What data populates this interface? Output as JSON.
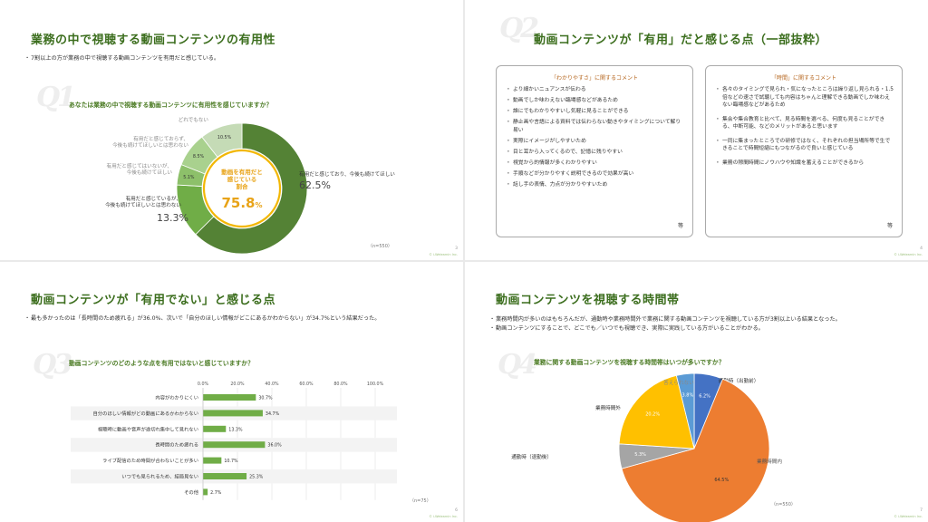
{
  "slide1": {
    "title": "業務の中で視聴する動画コンテンツの有用性",
    "bullet": "7割以上の方が業務の中で視聴する動画コンテンツを有用だと感じている。",
    "q_label": "Q1",
    "question": "あなたは業務の中で視聴する動画コンテンツに有用性を感じていますか？",
    "center_label_1": "動画を有用だと",
    "center_label_2": "感じている",
    "center_label_3": "割合",
    "center_value": "75.8",
    "center_unit": "%",
    "note": "（n=550）",
    "page": "3",
    "copy": "© i-Welearnin Inc.",
    "labels": {
      "a1": "有用だと感じており、今後も続けてほしい",
      "a2": "有用だと感じているが、",
      "a2b": "今後も続けてほしいとは思わない",
      "a3": "有用だと感じてはいないが、",
      "a3b": "今後も続けてほしい",
      "a4": "有用だと感じておらず、",
      "a4b": "今後も続けてほしいとは思わない",
      "a5": "どれでもない"
    }
  },
  "slide2": {
    "title": "動画コンテンツが「有用」だと感じる点（一部抜粋）",
    "q_label": "Q2",
    "box1_title": "「わかりやすさ」に関するコメント",
    "box1_items": [
      "より細かいニュアンスが伝わる",
      "動画でしか味わえない臨場感などがあるため",
      "誰にでもわかりやすいし気軽に見ることができる",
      "静止画や言語による資料では伝わらない動きやタイミングについて解り易い",
      "実際にイメージがしやすいため",
      "目と耳から入ってくるので、記憶に残りやすい",
      "視覚から的情報が多くわかりやすい",
      "手順などが分かりやすく説明できるので効果が高い",
      "話し手の表情、力点が分かりやすいため"
    ],
    "box1_etc": "等",
    "box2_title": "「時間」に関するコメント",
    "box2_items": [
      "各々のタイミングで見られ・気になったところは繰り返し見られる・1.5倍などの速さで試聴しても内容はちゃんと理解できる動画でしか味わえない臨場感などがあるため",
      "集会や集合教育と比べて、見る時間を選べる、何度も見ることができる、中断可能、などのメリットがあると思います",
      "一同に集まったところでの研修ではなく、それぞれの担当場所等で生できることで時間短縮にもつながるので良いと感じている",
      "業務の隙間時間にノウハウや知識を蓄えることができるから"
    ],
    "box2_etc": "等",
    "page": "4",
    "copy": "© i-Welearnin Inc."
  },
  "slide3": {
    "title": "動画コンテンツが「有用でない」と感じる点",
    "bullet": "最も多かったのは「長時間のため疲れる」が36.0%、次いで「自分のほしい情報がどこにあるかわからない」が34.7%という結果だった。",
    "q_label": "Q3",
    "question": "動画コンテンツのどのような点を有用ではないと感じていますか？",
    "note": "（n=75）",
    "page": "6",
    "copy": "© i-Welearnin Inc."
  },
  "slide4": {
    "title": "動画コンテンツを視聴する時間帯",
    "bullet1": "業務時間内が多いのはもちろんだが、通勤時や業務時間外で業務に関する動画コンテンツを視聴している方が3割以上いる結果となった。",
    "bullet2": "動画コンテンツにすることで、どこでも／いつでも視聴でき、実際に実践している方がいることがわかる。",
    "q_label": "Q4",
    "question": "業務に関する動画コンテンツを視聴する時間帯はいつが多いですか？",
    "note": "（n=550）",
    "page": "7",
    "copy": "© i-Welearnin Inc."
  },
  "chart_data": [
    {
      "type": "pie",
      "title": "あなたは業務の中で視聴する動画コンテンツに有用性を感じていますか？",
      "categories": [
        "有用だと感じており、今後も続けてほしい",
        "有用だと感じているが、今後も続けてほしいとは思わない",
        "有用だと感じてはいないが、今後も続けてほしい",
        "有用だと感じておらず、今後も続けてほしいとは思わない",
        "どれでもない"
      ],
      "values": [
        62.5,
        13.3,
        5.1,
        8.5,
        10.5
      ],
      "value_labels": [
        "62.5%",
        "13.3%",
        "5.1%",
        "8.5%",
        "10.5%"
      ],
      "colors": [
        "#548235",
        "#70ad47",
        "#8dc06a",
        "#a9d18e",
        "#c5dbb6"
      ]
    },
    {
      "type": "bar",
      "title": "動画コンテンツのどのような点を有用ではないと感じていますか？",
      "categories": [
        "内容がわかりにくい",
        "自分のほしい情報がどの動画にあるかわからない",
        "視聴時に動画や音声が途切れ集中して見れない",
        "長時間のため疲れる",
        "ライブ配信のため時間が合わないことが多い",
        "いつでも見られるため、結局見ない",
        "その他"
      ],
      "values": [
        30.7,
        34.7,
        13.3,
        36.0,
        10.7,
        25.3,
        2.7
      ],
      "value_labels": [
        "30.7%",
        "34.7%",
        "13.3%",
        "36.0%",
        "10.7%",
        "25.3%",
        "2.7%"
      ],
      "ticks": [
        "0.0%",
        "20.0%",
        "40.0%",
        "60.0%",
        "80.0%",
        "100.0%"
      ],
      "xlim": [
        0,
        100
      ],
      "color": "#70ad47"
    },
    {
      "type": "pie",
      "title": "業務に関する動画コンテンツを視聴する時間帯はいつが多いですか？",
      "categories": [
        "通勤時（出勤前）",
        "業務時間内",
        "通勤時（退勤後）",
        "業務時間外",
        "答えられない"
      ],
      "values": [
        6.2,
        64.5,
        5.3,
        20.2,
        3.8
      ],
      "value_labels": [
        "6.2%",
        "64.5%",
        "5.3%",
        "20.2%",
        "3.8%"
      ],
      "colors": [
        "#4472c4",
        "#ed7d31",
        "#a5a5a5",
        "#ffc000",
        "#5b9bd5"
      ]
    }
  ]
}
